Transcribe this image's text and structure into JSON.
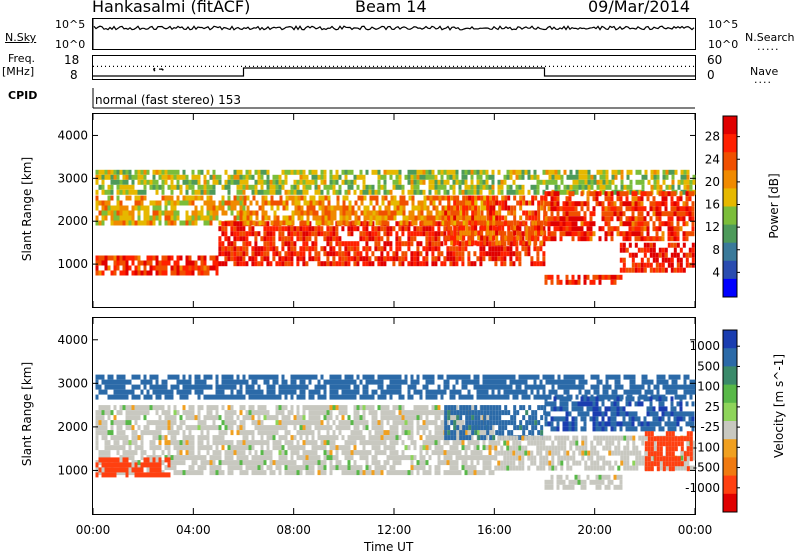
{
  "header": {
    "station": "Hankasalmi (fitACF)",
    "beam": "Beam 14",
    "date": "09/Mar/2014"
  },
  "top_panels": {
    "nsky_label": "N.Sky",
    "nsearch_label": "N.Search",
    "nsky_ticks": [
      "10^5",
      "10^0"
    ],
    "freq_label": "Freq.",
    "freq_unit": "[MHz]",
    "freq_ticks": [
      "18",
      "8"
    ],
    "nave_label": "Nave",
    "nave_ticks": [
      "60",
      "0"
    ],
    "cpid_label": "CPID",
    "cpid_text": "normal (fast stereo) 153"
  },
  "colors": {
    "power_scale": [
      "#0000ff",
      "#2a4cb0",
      "#3a7a9a",
      "#4d9a5a",
      "#7bbd3a",
      "#e6b800",
      "#f08a00",
      "#f05000",
      "#ff2000",
      "#e00000"
    ],
    "velocity_scale": [
      "#1a3db0",
      "#2b6aa8",
      "#3a8a6a",
      "#58b848",
      "#8ed45a",
      "#c8c8c0",
      "#f0a020",
      "#f07a10",
      "#ff4010",
      "#e00000"
    ]
  },
  "chart_data": [
    {
      "type": "heatmap",
      "title": "",
      "variable": "Power",
      "colorbar_label": "Power [dB]",
      "colorbar_ticks": [
        "28",
        "24",
        "20",
        "16",
        "12",
        "8",
        "4"
      ],
      "colorbar_range": [
        0,
        30
      ],
      "ylabel": "Slant Range [km]",
      "y_ticks": [
        "4000",
        "3000",
        "2000",
        "1000"
      ],
      "ylim": [
        0,
        4500
      ],
      "x_ticks": [
        "00:00",
        "04:00",
        "08:00",
        "12:00",
        "16:00",
        "20:00",
        "00:00"
      ],
      "xlim_hours": [
        0,
        24
      ],
      "regions": [
        {
          "t0": 0.1,
          "t1": 24,
          "r0": 2700,
          "r1": 3200,
          "level": 14
        },
        {
          "t0": 0.1,
          "t1": 6,
          "r0": 2000,
          "r1": 2600,
          "level": 18
        },
        {
          "t0": 0.1,
          "t1": 5,
          "r0": 800,
          "r1": 1200,
          "level": 26
        },
        {
          "t0": 5,
          "t1": 18,
          "r0": 1000,
          "r1": 2000,
          "level": 27
        },
        {
          "t0": 6,
          "t1": 16,
          "r0": 2000,
          "r1": 2600,
          "level": 20
        },
        {
          "t0": 14,
          "t1": 18,
          "r0": 1500,
          "r1": 2600,
          "level": 24
        },
        {
          "t0": 18,
          "t1": 23.9,
          "r0": 1600,
          "r1": 2700,
          "level": 26
        },
        {
          "t0": 21,
          "t1": 23.9,
          "r0": 850,
          "r1": 1500,
          "level": 28
        },
        {
          "t0": 18,
          "t1": 21,
          "r0": 550,
          "r1": 750,
          "level": 27
        }
      ]
    },
    {
      "type": "heatmap",
      "title": "",
      "variable": "Velocity",
      "colorbar_label": "Velocity [m s^-1]",
      "colorbar_ticks": [
        "1000",
        "500",
        "100",
        "25",
        "-25",
        "-100",
        "-500",
        "-1000"
      ],
      "colorbar_range": [
        -1000,
        1000
      ],
      "ylabel": "Slant Range [km]",
      "y_ticks": [
        "4000",
        "3000",
        "2000",
        "1000"
      ],
      "ylim": [
        0,
        4500
      ],
      "x_ticks": [
        "00:00",
        "04:00",
        "08:00",
        "12:00",
        "16:00",
        "20:00",
        "00:00"
      ],
      "xlim_hours": [
        0,
        24
      ],
      "xlabel": "Time UT",
      "regions": [
        {
          "t0": 0.1,
          "t1": 24,
          "r0": 2700,
          "r1": 3200,
          "level": 300
        },
        {
          "t0": 0.1,
          "t1": 16,
          "r0": 900,
          "r1": 2500,
          "level": 0
        },
        {
          "t0": 0.1,
          "t1": 3,
          "r0": 900,
          "r1": 1300,
          "level": -200
        },
        {
          "t0": 14,
          "t1": 18,
          "r0": 1700,
          "r1": 2500,
          "level": 150
        },
        {
          "t0": 18,
          "t1": 23.9,
          "r0": 1900,
          "r1": 2700,
          "level": 400
        },
        {
          "t0": 16,
          "t1": 23.9,
          "r0": 1000,
          "r1": 1800,
          "level": 0
        },
        {
          "t0": 22,
          "t1": 23.9,
          "r0": 1000,
          "r1": 1900,
          "level": -300
        },
        {
          "t0": 18,
          "t1": 21,
          "r0": 600,
          "r1": 900,
          "level": 0
        }
      ]
    }
  ],
  "timeseries": {
    "nsky_level": 0.7,
    "freq_high_intervals": [
      [
        6,
        18
      ]
    ],
    "nave_dotted_level": 0.55
  }
}
